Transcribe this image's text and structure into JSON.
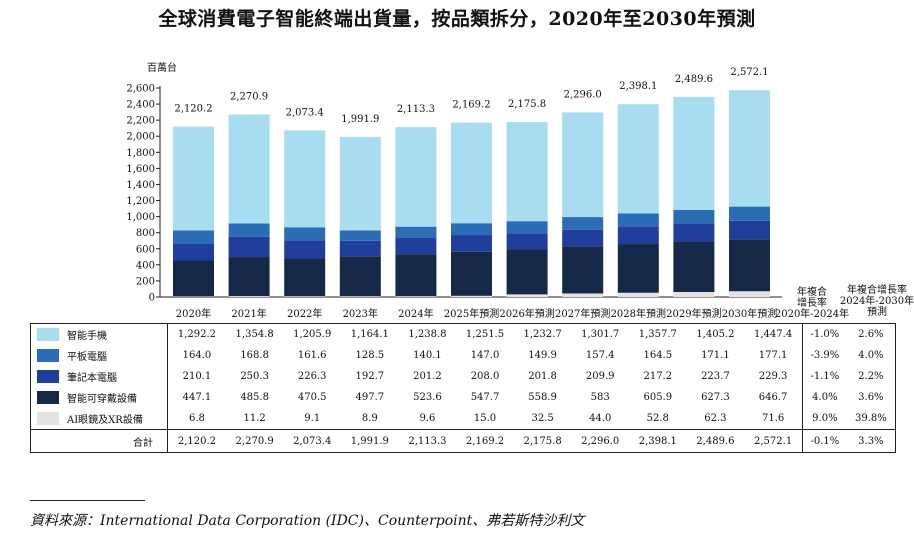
{
  "title": "全球消費電子智能終端出貨量，按品類拆分，2020年至2030年預測",
  "source": "資料來源：International Data Corporation (IDC)、Counterpoint、弗若斯特沙利文",
  "chart_data": {
    "type": "bar",
    "stacked": true,
    "ylabel": "百萬台",
    "ylim": [
      0,
      2600
    ],
    "ytick_step": 200,
    "yticks": [
      "0",
      "200",
      "400",
      "600",
      "800",
      "1,000",
      "1,200",
      "1,400",
      "1,600",
      "1,800",
      "2,000",
      "2,200",
      "2,400",
      "2,600"
    ],
    "categories": [
      "2020年",
      "2021年",
      "2022年",
      "2023年",
      "2024年",
      "2025年預測",
      "2026年預測",
      "2027年預測",
      "2028年預測",
      "2029年預測",
      "2030年預測"
    ],
    "series": [
      {
        "name": "智能手機",
        "color": "#a8dcf0",
        "values": [
          1292.2,
          1354.8,
          1205.9,
          1164.1,
          1238.8,
          1251.5,
          1232.7,
          1301.7,
          1357.7,
          1405.2,
          1447.4
        ],
        "labels": [
          "1,292.2",
          "1,354.8",
          "1,205.9",
          "1,164.1",
          "1,238.8",
          "1,251.5",
          "1,232.7",
          "1,301.7",
          "1,357.7",
          "1,405.2",
          "1,447.4"
        ],
        "cagr_2020_2024": "-1.0%",
        "cagr_2024_2030": "2.6%"
      },
      {
        "name": "平板電腦",
        "color": "#2a6db5",
        "values": [
          164.0,
          168.8,
          161.6,
          128.5,
          140.1,
          147.0,
          149.9,
          157.4,
          164.5,
          171.1,
          177.1
        ],
        "labels": [
          "164.0",
          "168.8",
          "161.6",
          "128.5",
          "140.1",
          "147.0",
          "149.9",
          "157.4",
          "164.5",
          "171.1",
          "177.1"
        ],
        "cagr_2020_2024": "-3.9%",
        "cagr_2024_2030": "4.0%"
      },
      {
        "name": "筆記本電腦",
        "color": "#203e9c",
        "values": [
          210.1,
          250.3,
          226.3,
          192.7,
          201.2,
          208.0,
          201.8,
          209.9,
          217.2,
          223.7,
          229.3
        ],
        "labels": [
          "210.1",
          "250.3",
          "226.3",
          "192.7",
          "201.2",
          "208.0",
          "201.8",
          "209.9",
          "217.2",
          "223.7",
          "229.3"
        ],
        "cagr_2020_2024": "-1.1%",
        "cagr_2024_2030": "2.2%"
      },
      {
        "name": "智能可穿戴設備",
        "color": "#152848",
        "values": [
          447.1,
          485.8,
          470.5,
          497.7,
          523.6,
          547.7,
          558.9,
          583,
          605.9,
          627.3,
          646.7
        ],
        "labels": [
          "447.1",
          "485.8",
          "470.5",
          "497.7",
          "523.6",
          "547.7",
          "558.9",
          "583",
          "605.9",
          "627.3",
          "646.7"
        ],
        "cagr_2020_2024": "4.0%",
        "cagr_2024_2030": "3.6%"
      },
      {
        "name": "AI眼鏡及XR設備",
        "color": "#e3e3e3",
        "values": [
          6.8,
          11.2,
          9.1,
          8.9,
          9.6,
          15.0,
          32.5,
          44.0,
          52.8,
          62.3,
          71.6
        ],
        "labels": [
          "6.8",
          "11.2",
          "9.1",
          "8.9",
          "9.6",
          "15.0",
          "32.5",
          "44.0",
          "52.8",
          "62.3",
          "71.6"
        ],
        "cagr_2020_2024": "9.0%",
        "cagr_2024_2030": "39.8%"
      }
    ],
    "stack_order_bottom_to_top": [
      4,
      3,
      2,
      1,
      0
    ],
    "totals": [
      2120.2,
      2270.9,
      2073.4,
      1991.9,
      2113.3,
      2169.2,
      2175.8,
      2296.0,
      2398.1,
      2489.6,
      2572.1
    ],
    "total_labels": [
      "2,120.2",
      "2,270.9",
      "2,073.4",
      "1,991.9",
      "2,113.3",
      "2,169.2",
      "2,175.8",
      "2,296.0",
      "2,398.1",
      "2,489.6",
      "2,572.1"
    ],
    "total_row": {
      "name": "合計",
      "cagr_2020_2024": "-0.1%",
      "cagr_2024_2030": "3.3%"
    },
    "cagr_headers": {
      "h1": [
        "年複合",
        "增長率",
        "2020年-2024年"
      ],
      "h2": [
        "年複合增長率",
        "2024年-2030年",
        "預測"
      ]
    }
  }
}
